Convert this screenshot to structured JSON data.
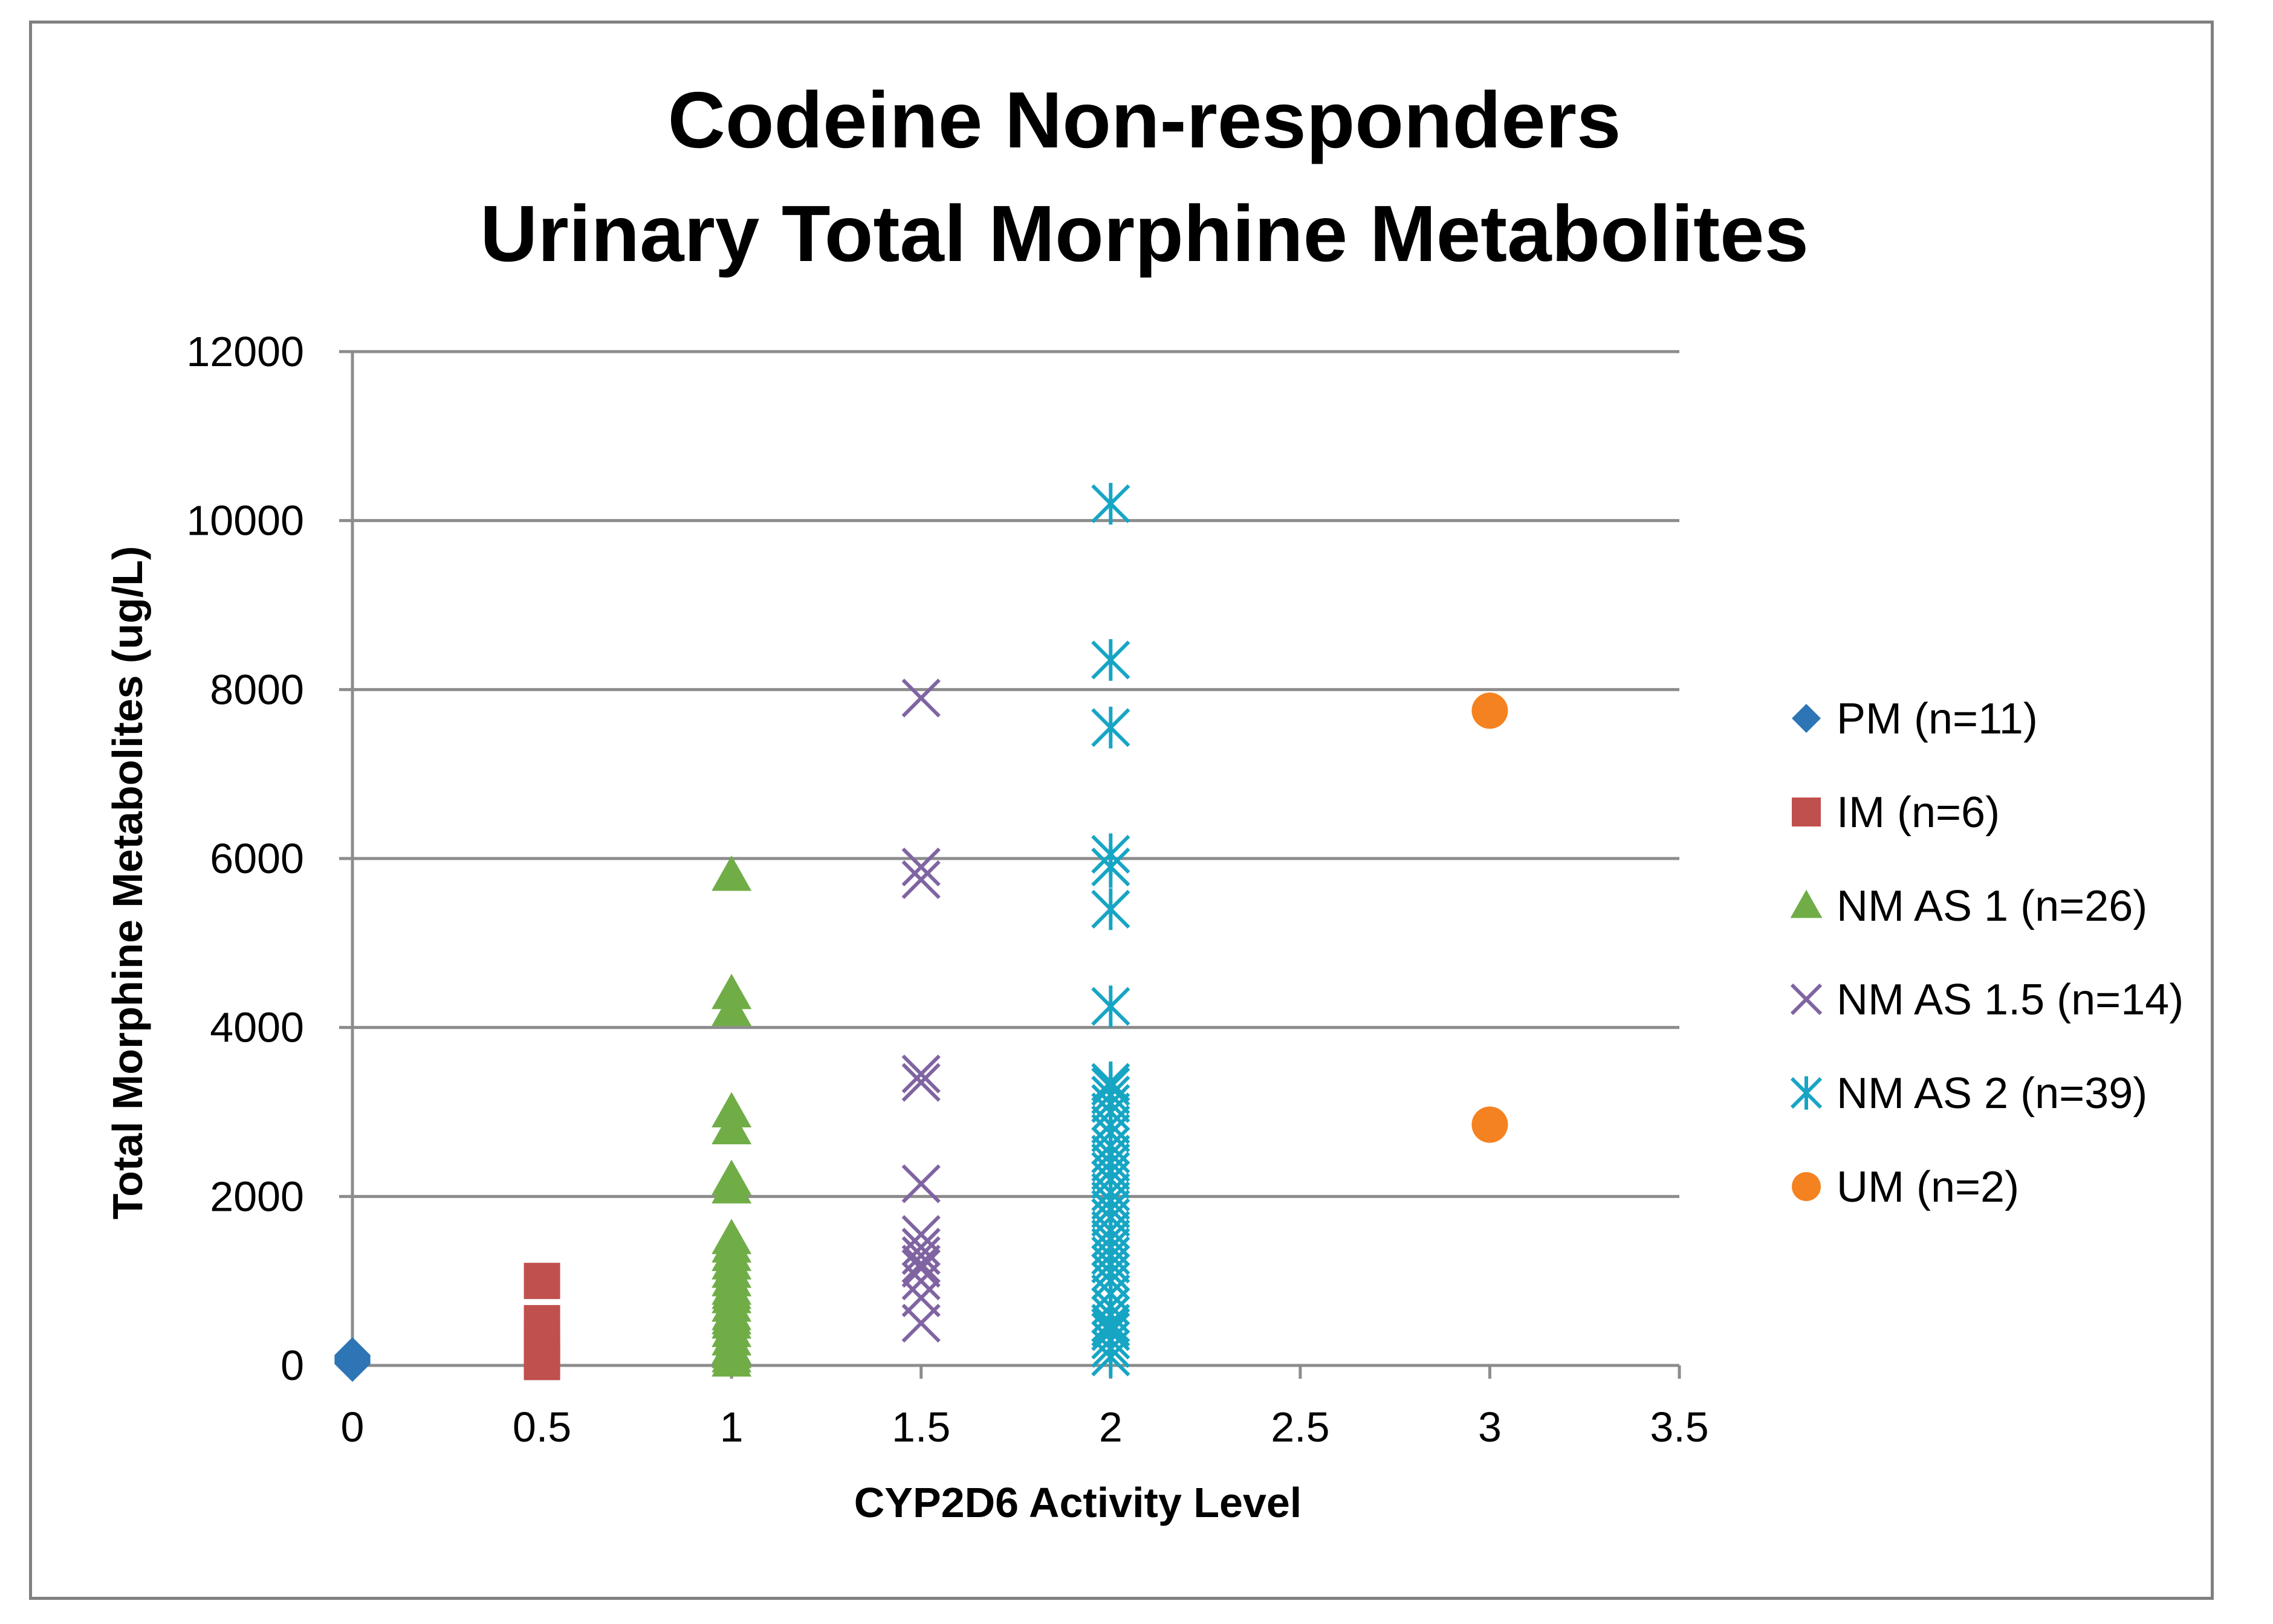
{
  "chart_data": {
    "type": "scatter",
    "title_lines": [
      "Codeine Non-responders",
      "Urinary Total Morphine Metabolites"
    ],
    "xlabel": "CYP2D6 Activity Level",
    "ylabel": "Total Morphine Metabolites (ug/L)",
    "xlim": [
      0,
      3.5
    ],
    "ylim": [
      0,
      12000
    ],
    "xticks": [
      0,
      0.5,
      1,
      1.5,
      2,
      2.5,
      3,
      3.5
    ],
    "xtick_labels": [
      "0",
      "0.5",
      "1",
      "1.5",
      "2",
      "2.5",
      "3",
      "3.5"
    ],
    "yticks": [
      0,
      2000,
      4000,
      6000,
      8000,
      10000,
      12000
    ],
    "ytick_labels": [
      "0",
      "2000",
      "4000",
      "6000",
      "8000",
      "10000",
      "12000"
    ],
    "grid": "horizontal",
    "legend_position": "right",
    "series": [
      {
        "name": "PM (n=11)",
        "marker": "diamond",
        "color": "#2E75B6",
        "x": [
          0,
          0,
          0,
          0,
          0,
          0,
          0,
          0,
          0,
          0,
          0
        ],
        "y": [
          20,
          30,
          40,
          50,
          60,
          70,
          80,
          90,
          100,
          110,
          120
        ]
      },
      {
        "name": "IM (n=6)",
        "marker": "square",
        "color": "#C0504D",
        "x": [
          0.5,
          0.5,
          0.5,
          0.5,
          0.5,
          0.5
        ],
        "y": [
          1000,
          500,
          300,
          150,
          80,
          40
        ]
      },
      {
        "name": "NM AS 1 (n=26)",
        "marker": "triangle",
        "color": "#70AD47",
        "x": [
          1,
          1,
          1,
          1,
          1,
          1,
          1,
          1,
          1,
          1,
          1,
          1,
          1,
          1,
          1,
          1,
          1,
          1,
          1,
          1,
          1,
          1,
          1,
          1,
          1,
          1
        ],
        "y": [
          5800,
          4400,
          4200,
          3000,
          2800,
          2200,
          2100,
          1500,
          1400,
          1300,
          1200,
          1100,
          1000,
          900,
          850,
          800,
          700,
          600,
          550,
          500,
          400,
          300,
          200,
          150,
          100,
          50
        ]
      },
      {
        "name": "NM AS 1.5 (n=14)",
        "marker": "x",
        "color": "#8064A2",
        "x": [
          1.5,
          1.5,
          1.5,
          1.5,
          1.5,
          1.5,
          1.5,
          1.5,
          1.5,
          1.5,
          1.5,
          1.5,
          1.5,
          1.5
        ],
        "y": [
          7900,
          5900,
          5750,
          3450,
          3350,
          2150,
          1550,
          1400,
          1300,
          1200,
          1150,
          1000,
          800,
          500
        ]
      },
      {
        "name": "NM AS 2 (n=39)",
        "marker": "star",
        "color": "#17A5C4",
        "x": [
          2,
          2,
          2,
          2,
          2,
          2,
          2,
          2,
          2,
          2,
          2,
          2,
          2,
          2,
          2,
          2,
          2,
          2,
          2,
          2,
          2,
          2,
          2,
          2,
          2,
          2,
          2,
          2,
          2,
          2,
          2,
          2,
          2,
          2,
          2,
          2,
          2,
          2,
          2
        ],
        "y": [
          10200,
          8350,
          7550,
          6050,
          5900,
          5400,
          4250,
          3350,
          3300,
          3200,
          3100,
          3000,
          2850,
          2750,
          2600,
          2500,
          2400,
          2300,
          2200,
          2050,
          1950,
          1850,
          1750,
          1600,
          1500,
          1400,
          1300,
          1200,
          1100,
          1000,
          850,
          700,
          600,
          500,
          450,
          400,
          300,
          200,
          100
        ]
      },
      {
        "name": "UM (n=2)",
        "marker": "circle",
        "color": "#F58220",
        "x": [
          3,
          3
        ],
        "y": [
          7750,
          2850
        ]
      }
    ]
  }
}
